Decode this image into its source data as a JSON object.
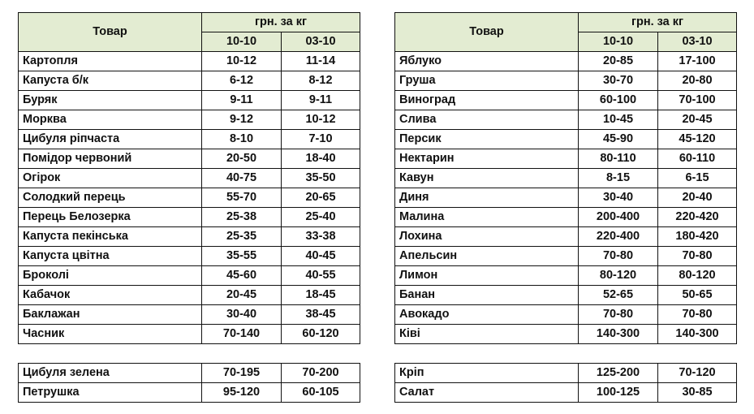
{
  "header": {
    "product": "Товар",
    "unit": "грн. за кг",
    "date1": "10-10",
    "date2": "03-10"
  },
  "colors": {
    "header_bg": "#e3ecd2",
    "border": "#111111"
  },
  "left": {
    "rows": [
      [
        "Картопля",
        "10-12",
        "11-14"
      ],
      [
        "Капуста б/к",
        "6-12",
        "8-12"
      ],
      [
        "Буряк",
        "9-11",
        "9-11"
      ],
      [
        "Морква",
        "9-12",
        "10-12"
      ],
      [
        "Цибуля ріпчаста",
        "8-10",
        "7-10"
      ],
      [
        "Помідор червоний",
        "20-50",
        "18-40"
      ],
      [
        "Огірок",
        "40-75",
        "35-50"
      ],
      [
        "Солодкий перець",
        "55-70",
        "20-65"
      ],
      [
        "Перець Белозерка",
        "25-38",
        "25-40"
      ],
      [
        "Капуста пекінська",
        "25-35",
        "33-38"
      ],
      [
        "Капуста цвітна",
        "35-55",
        "40-45"
      ],
      [
        "Броколі",
        "45-60",
        "40-55"
      ],
      [
        "Кабачок",
        "20-45",
        "18-45"
      ],
      [
        "Баклажан",
        "30-40",
        "38-45"
      ],
      [
        "Часник",
        "70-140",
        "60-120"
      ]
    ],
    "extra": [
      [
        "Цибуля зелена",
        "70-195",
        "70-200"
      ],
      [
        "Петрушка",
        "95-120",
        "60-105"
      ]
    ]
  },
  "right": {
    "rows": [
      [
        "Яблуко",
        "20-85",
        "17-100"
      ],
      [
        "Груша",
        "30-70",
        "20-80"
      ],
      [
        "Виноград",
        "60-100",
        "70-100"
      ],
      [
        "Слива",
        "10-45",
        "20-45"
      ],
      [
        "Персик",
        "45-90",
        "45-120"
      ],
      [
        "Нектарин",
        "80-110",
        "60-110"
      ],
      [
        "Кавун",
        "8-15",
        "6-15"
      ],
      [
        "Диня",
        "30-40",
        "20-40"
      ],
      [
        "Малина",
        "200-400",
        "220-420"
      ],
      [
        "Лохина",
        "220-400",
        "180-420"
      ],
      [
        "Апельсин",
        "70-80",
        "70-80"
      ],
      [
        "Лимон",
        "80-120",
        "80-120"
      ],
      [
        "Банан",
        "52-65",
        "50-65"
      ],
      [
        "Авокадо",
        "70-80",
        "70-80"
      ],
      [
        "Ківі",
        "140-300",
        "140-300"
      ]
    ],
    "extra": [
      [
        "Кріп",
        "125-200",
        "70-120"
      ],
      [
        "Салат",
        "100-125",
        "30-85"
      ]
    ]
  }
}
